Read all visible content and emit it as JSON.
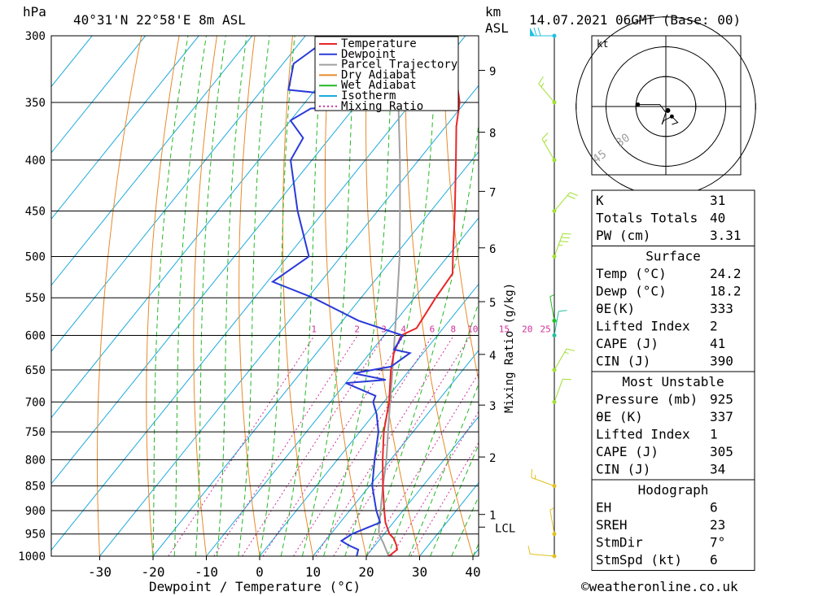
{
  "header": {
    "location": "40°31'N 22°58'E 8m ASL",
    "datetime": "14.07.2021 06GMT (Base: 00)",
    "unit_left": "hPa",
    "unit_km": "km",
    "unit_asl": "ASL"
  },
  "footer": {
    "xlabel": "Dewpoint / Temperature (°C)",
    "ylabel_right": "Mixing Ratio (g/kg)",
    "credit": "©weatheronline.co.uk"
  },
  "legend": [
    {
      "label": "Temperature",
      "color": "#e8262a",
      "style": "solid"
    },
    {
      "label": "Dewpoint",
      "color": "#2a3ad8",
      "style": "solid"
    },
    {
      "label": "Parcel Trajectory",
      "color": "#a0a0a0",
      "style": "solid"
    },
    {
      "label": "Dry Adiabat",
      "color": "#e88a2a",
      "style": "solid"
    },
    {
      "label": "Wet Adiabat",
      "color": "#22b822",
      "style": "solid"
    },
    {
      "label": "Isotherm",
      "color": "#1eaadd",
      "style": "solid"
    },
    {
      "label": "Mixing Ratio",
      "color": "#d0309a",
      "style": "dotted"
    }
  ],
  "chart_data": {
    "type": "skew-t",
    "pressure_ticks": [
      300,
      350,
      400,
      450,
      500,
      550,
      600,
      650,
      700,
      750,
      800,
      850,
      900,
      950,
      1000
    ],
    "temperature_ticks": [
      -30,
      -20,
      -10,
      0,
      10,
      20,
      30,
      40
    ],
    "km_ticks": [
      {
        "km": "1",
        "p": 908
      },
      {
        "km": "2",
        "p": 795
      },
      {
        "km": "3",
        "p": 705
      },
      {
        "km": "4",
        "p": 627
      },
      {
        "km": "5",
        "p": 555
      },
      {
        "km": "6",
        "p": 490
      },
      {
        "km": "7",
        "p": 430
      },
      {
        "km": "8",
        "p": 375
      },
      {
        "km": "9",
        "p": 325
      }
    ],
    "lcl": {
      "label": "LCL",
      "p": 935
    },
    "mixing_ratio_labels": [
      "1",
      "2",
      "3",
      "4",
      "6",
      "8",
      "10",
      "15",
      "20",
      "25"
    ],
    "mixing_ratio_values": [
      1,
      2,
      3,
      4,
      6,
      8,
      10,
      15,
      20,
      25
    ],
    "temperature": {
      "p": [
        1000,
        985,
        975,
        960,
        950,
        925,
        900,
        850,
        800,
        750,
        700,
        650,
        625,
        600,
        590,
        550,
        520,
        500,
        450,
        400,
        370,
        350,
        330,
        310,
        300
      ],
      "t": [
        24.2,
        24.8,
        24.0,
        22.5,
        21.0,
        18.5,
        16.5,
        12.5,
        8.5,
        4.5,
        1.0,
        -3.5,
        -5.5,
        -6.8,
        -5.0,
        -6.0,
        -6.5,
        -9.0,
        -15.5,
        -23.0,
        -28.0,
        -31.0,
        -35.5,
        -40.0,
        -42.5
      ]
    },
    "dewpoint": {
      "p": [
        1000,
        985,
        975,
        965,
        950,
        925,
        900,
        850,
        800,
        750,
        720,
        700,
        690,
        670,
        665,
        655,
        645,
        625,
        620,
        600,
        580,
        550,
        530,
        500,
        450,
        400,
        380,
        365,
        355,
        350,
        340,
        320,
        300
      ],
      "d": [
        18.2,
        17.5,
        15.0,
        13.0,
        14.0,
        17.5,
        15.0,
        10.5,
        7.0,
        3.5,
        0.5,
        -2.0,
        -2.5,
        -10.0,
        -3.0,
        -10.0,
        -4.0,
        -2.5,
        -6.0,
        -6.5,
        -17.0,
        -29.0,
        -39.0,
        -36.0,
        -45.0,
        -54.0,
        -55.0,
        -60.0,
        -58.0,
        -40.0,
        -65.0,
        -68.0,
        -65.0
      ]
    },
    "parcel": {
      "p": [
        1000,
        970,
        950,
        935,
        900,
        850,
        800,
        750,
        700,
        650,
        600,
        550,
        500,
        450,
        400,
        350,
        300
      ],
      "t": [
        24.2,
        21.2,
        19.0,
        18.0,
        15.8,
        12.5,
        9.2,
        5.3,
        1.2,
        -3.2,
        -8.0,
        -13.2,
        -19.0,
        -25.8,
        -33.5,
        -42.5,
        -53.0
      ]
    },
    "xlim": [
      -40,
      40
    ],
    "ylim_hpa": [
      1000,
      300
    ],
    "wind_barbs": [
      {
        "p": 1000,
        "dir": 275,
        "spd": 10,
        "color": "#e0c020"
      },
      {
        "p": 950,
        "dir": 350,
        "spd": 5,
        "color": "#e0c020"
      },
      {
        "p": 850,
        "dir": 290,
        "spd": 15,
        "color": "#e0c020"
      },
      {
        "p": 700,
        "dir": 20,
        "spd": 10,
        "color": "#a0e030"
      },
      {
        "p": 650,
        "dir": 30,
        "spd": 15,
        "color": "#a0e030"
      },
      {
        "p": 600,
        "dir": 10,
        "spd": 10,
        "color": "#20c0a0"
      },
      {
        "p": 580,
        "dir": 350,
        "spd": 5,
        "color": "#20c020"
      },
      {
        "p": 500,
        "dir": 20,
        "spd": 35,
        "color": "#a0e030"
      },
      {
        "p": 450,
        "dir": 40,
        "spd": 20,
        "color": "#a0e030"
      },
      {
        "p": 400,
        "dir": 330,
        "spd": 15,
        "color": "#a0e030"
      },
      {
        "p": 350,
        "dir": 320,
        "spd": 15,
        "color": "#a0e030"
      },
      {
        "p": 300,
        "dir": 270,
        "spd": 70,
        "color": "#20c0e0"
      }
    ],
    "hodograph": {
      "unit_label": "kt",
      "rings": [
        "15",
        "30",
        "45"
      ],
      "points": [
        [
          -14,
          1
        ],
        [
          -3,
          1
        ],
        [
          0,
          -3
        ],
        [
          -2,
          -9
        ],
        [
          -1,
          -7
        ],
        [
          3,
          -5
        ],
        [
          6,
          -8
        ],
        [
          3,
          -9
        ]
      ]
    }
  },
  "tables": {
    "indices": [
      {
        "label": "K",
        "value": "31"
      },
      {
        "label": "Totals Totals",
        "value": "40"
      },
      {
        "label": "PW (cm)",
        "value": "3.31"
      }
    ],
    "surface": {
      "title": "Surface",
      "rows": [
        {
          "label": "Temp (°C)",
          "value": "24.2"
        },
        {
          "label": "Dewp (°C)",
          "value": "18.2"
        },
        {
          "label": "θE(K)",
          "value": "333"
        },
        {
          "label": "Lifted Index",
          "value": "2"
        },
        {
          "label": "CAPE (J)",
          "value": "41"
        },
        {
          "label": "CIN (J)",
          "value": "390"
        }
      ]
    },
    "most_unstable": {
      "title": "Most Unstable",
      "rows": [
        {
          "label": "Pressure (mb)",
          "value": "925"
        },
        {
          "label": "θE (K)",
          "value": "337"
        },
        {
          "label": "Lifted Index",
          "value": "1"
        },
        {
          "label": "CAPE (J)",
          "value": "305"
        },
        {
          "label": "CIN (J)",
          "value": "34"
        }
      ]
    },
    "hodograph": {
      "title": "Hodograph",
      "rows": [
        {
          "label": "EH",
          "value": "6"
        },
        {
          "label": "SREH",
          "value": "23"
        },
        {
          "label": "StmDir",
          "value": "7°"
        },
        {
          "label": "StmSpd (kt)",
          "value": "6"
        }
      ]
    }
  }
}
